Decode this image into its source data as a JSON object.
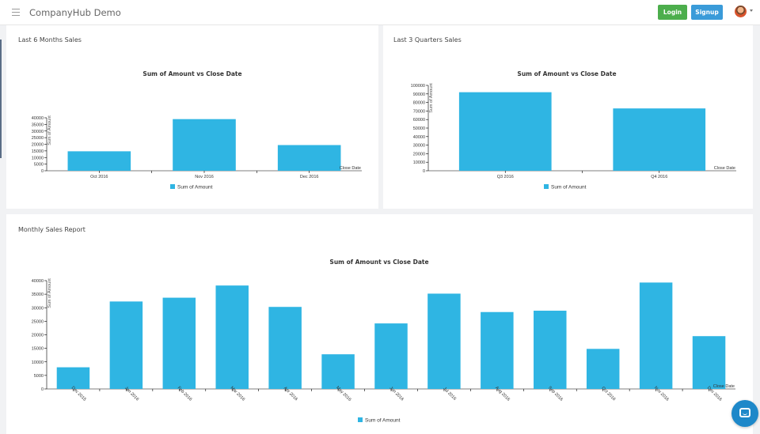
{
  "app": {
    "title": "CompanyHub Demo"
  },
  "header": {
    "login_label": "Login",
    "signup_label": "Signup"
  },
  "panels": {
    "six_months": {
      "title": "Last 6 Months Sales"
    },
    "three_quarters": {
      "title": "Last 3 Quarters Sales"
    },
    "monthly": {
      "title": "Monthly Sales Report"
    }
  },
  "colors": {
    "bar": "#2fb5e3",
    "login": "#4cae4c",
    "signup": "#3a9bd9",
    "chat": "#1e88c9"
  },
  "icons": {
    "menu": "hamburger-icon",
    "avatar": "user-avatar",
    "chat": "chat-icon"
  },
  "chart_data": [
    {
      "type": "bar",
      "title": "Sum of Amount vs Close Date",
      "xlabel": "Close Date",
      "ylabel": "Sum of Amount",
      "categories": [
        "Oct 2016",
        "Nov 2016",
        "Dec 2016"
      ],
      "series": [
        {
          "name": "Sum of Amount",
          "values": [
            14700,
            39000,
            19400
          ]
        }
      ],
      "ylim": [
        0,
        40000
      ],
      "yticks": [
        0,
        5000,
        10000,
        15000,
        20000,
        25000,
        30000,
        35000,
        40000
      ],
      "grid": false,
      "legend": "bottom"
    },
    {
      "type": "bar",
      "title": "Sum of Amount vs Close Date",
      "xlabel": "Close Date",
      "ylabel": "Sum of Amount",
      "categories": [
        "Q3 2016",
        "Q4 2016"
      ],
      "series": [
        {
          "name": "Sum of Amount",
          "values": [
            92000,
            73000
          ]
        }
      ],
      "ylim": [
        0,
        100000
      ],
      "yticks": [
        0,
        10000,
        20000,
        30000,
        40000,
        50000,
        60000,
        70000,
        80000,
        90000,
        100000
      ],
      "grid": false,
      "legend": "bottom"
    },
    {
      "type": "bar",
      "title": "Sum of Amount vs Close Date",
      "xlabel": "Close Date",
      "ylabel": "Sum of Amount",
      "categories": [
        "Dec 2015",
        "Jan 2016",
        "Feb 2016",
        "Mar 2016",
        "Apr 2016",
        "May 2016",
        "Jun 2016",
        "Jul 2016",
        "Aug 2016",
        "Sep 2016",
        "Oct 2016",
        "Nov 2016",
        "Dec 2016"
      ],
      "series": [
        {
          "name": "Sum of Amount",
          "values": [
            8000,
            32300,
            33700,
            38200,
            30300,
            12800,
            24200,
            35200,
            28400,
            28900,
            14800,
            39300,
            19500
          ]
        }
      ],
      "ylim": [
        0,
        40000
      ],
      "yticks": [
        0,
        5000,
        10000,
        15000,
        20000,
        25000,
        30000,
        35000,
        40000
      ],
      "grid": false,
      "legend": "bottom"
    }
  ]
}
